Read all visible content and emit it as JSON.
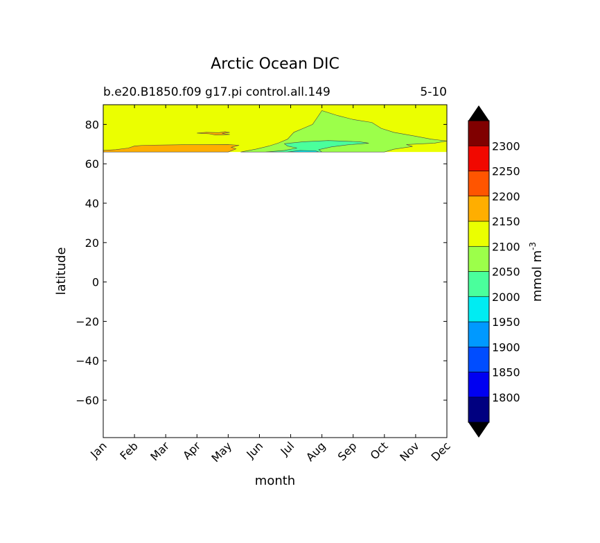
{
  "chart_data": {
    "type": "contour",
    "title": "Arctic Ocean DIC",
    "subtitle_left": "b.e20.B1850.f09 g17.pi control.all.149",
    "subtitle_right": "5-10",
    "xlabel": "month",
    "ylabel": "latitude",
    "x_categories": [
      "Jan",
      "Feb",
      "Mar",
      "Apr",
      "May",
      "Jun",
      "Jul",
      "Aug",
      "Sep",
      "Oct",
      "Nov",
      "Dec"
    ],
    "ylim": [
      -79,
      90
    ],
    "yticks": [
      -60,
      -40,
      -20,
      0,
      20,
      40,
      60,
      80
    ],
    "data_lat_range": [
      66,
      90
    ],
    "colorbar": {
      "label": "mmol m",
      "label_sup": "-3",
      "levels": [
        1750,
        1800,
        1850,
        1900,
        1950,
        2000,
        2050,
        2100,
        2150,
        2200,
        2250,
        2300,
        2350
      ],
      "tick_labels": [
        "1800",
        "1850",
        "1900",
        "1950",
        "2000",
        "2050",
        "2100",
        "2150",
        "2200",
        "2250",
        "2300"
      ],
      "colors": [
        "#000080",
        "#0000f1",
        "#004dff",
        "#0099ff",
        "#00ecf2",
        "#4aff9c",
        "#9cff4a",
        "#ebff00",
        "#ffae00",
        "#ff5500",
        "#f10800",
        "#800000"
      ],
      "extend_color": "#000000"
    },
    "regions": [
      {
        "name": "background",
        "level": 2125,
        "color": "#ebff00"
      },
      {
        "name": "low-lat-band",
        "level": 2175,
        "color": "#ffae00",
        "months": "Jan-May",
        "lat": [
          66,
          70
        ]
      },
      {
        "name": "may-patch",
        "level": 2175,
        "color": "#ffae00",
        "months": "Apr-May",
        "lat": [
          74.5,
          76.5
        ]
      },
      {
        "name": "summer-plume",
        "level": 2075,
        "color": "#9cff4a",
        "months": "Jun-Nov",
        "lat": [
          66,
          87
        ]
      },
      {
        "name": "aug-core",
        "level": 2025,
        "color": "#4aff9c",
        "months": "Jul-Sep",
        "lat": [
          66,
          72
        ]
      }
    ]
  }
}
